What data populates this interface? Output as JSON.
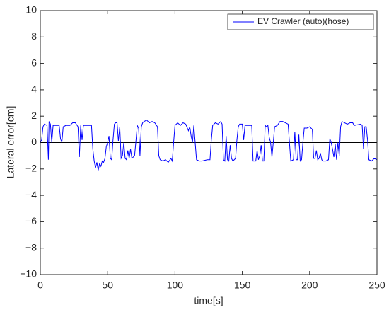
{
  "chart_data": {
    "type": "line",
    "xlabel": "time[s]",
    "ylabel": "Lateral error[cm]",
    "xlim": [
      0,
      250
    ],
    "ylim": [
      -10,
      10
    ],
    "xticks": [
      0,
      50,
      100,
      150,
      200,
      250
    ],
    "yticks": [
      {
        "value": -10,
        "label": "−10"
      },
      {
        "value": -8,
        "label": "−8"
      },
      {
        "value": -6,
        "label": "−6"
      },
      {
        "value": -4,
        "label": "−4"
      },
      {
        "value": -2,
        "label": "−2"
      },
      0,
      2,
      4,
      6,
      8,
      10
    ],
    "hlines": [
      0
    ],
    "legend": "top-right",
    "x": [
      0,
      1,
      2,
      3,
      5,
      6,
      6.5,
      7.5,
      8.5,
      9.5,
      12,
      14,
      15,
      16,
      17,
      19,
      22,
      24,
      26,
      28,
      29,
      30,
      31,
      32,
      35,
      38,
      39,
      40,
      41,
      42,
      43,
      44,
      45,
      46,
      47,
      48,
      49,
      50,
      51,
      52,
      53,
      54,
      55,
      56,
      57,
      58,
      59,
      60,
      61,
      62,
      63,
      64,
      65,
      66,
      67,
      68,
      69,
      70,
      71,
      72,
      73,
      74,
      75,
      76,
      77,
      79,
      81,
      83,
      85,
      87,
      88,
      89,
      91,
      93,
      95,
      97,
      98,
      99,
      100,
      102,
      104,
      106,
      108,
      110,
      111,
      112,
      113,
      114,
      116,
      118,
      120,
      124,
      126,
      127,
      128,
      130,
      132,
      134,
      135,
      136,
      137,
      138,
      139,
      140,
      141,
      142,
      143,
      144,
      145,
      146,
      147,
      148,
      150,
      151,
      152,
      154,
      157,
      158,
      160,
      161,
      162,
      163,
      164,
      165,
      166,
      167,
      168,
      169,
      170,
      171,
      172,
      173,
      174,
      176,
      178,
      180,
      182,
      184,
      186,
      188,
      189,
      190,
      191,
      192,
      193,
      194,
      195,
      196,
      198,
      200,
      202,
      203,
      204,
      205,
      206,
      207,
      208,
      209,
      210,
      212,
      214,
      215,
      216,
      217,
      218,
      219,
      220,
      221,
      222,
      223,
      224,
      226,
      228,
      230,
      232,
      233,
      238,
      239,
      240,
      241,
      242,
      243,
      244,
      246,
      248,
      250
    ],
    "series": [
      {
        "name": "EV Crawler (auto)(hose)",
        "color": "#0000ff",
        "values": [
          0,
          0.2,
          1.2,
          1.4,
          1.3,
          -1.3,
          1.6,
          1.4,
          0,
          1.3,
          1.3,
          1.3,
          0.3,
          0,
          1.2,
          1.3,
          1.3,
          1.5,
          1.5,
          1.2,
          -1.1,
          1.3,
          0.2,
          1.3,
          1.3,
          1.3,
          -0.5,
          -1.4,
          -1.9,
          -1.5,
          -2.1,
          -1.6,
          -1.8,
          -1.4,
          -1.5,
          -1.2,
          -0.3,
          0,
          0.5,
          -1.2,
          -1.3,
          0.2,
          1.4,
          1.5,
          1.5,
          0.1,
          1.2,
          -1.2,
          -1.0,
          0,
          -1.2,
          -1.3,
          -0.6,
          -1.2,
          -0.5,
          -1.2,
          -1.1,
          -1.0,
          0.1,
          1.3,
          1.1,
          -1.0,
          1.2,
          1.5,
          1.6,
          1.7,
          1.5,
          1.6,
          1.5,
          1.2,
          -1.0,
          -1.3,
          -1.4,
          -1.3,
          -1.5,
          -1.2,
          -1.4,
          0,
          1.3,
          1.5,
          1.3,
          1.5,
          1.4,
          0.9,
          1.2,
          0.5,
          0,
          1.3,
          -1.3,
          -1.4,
          -1.4,
          -1.3,
          -1.3,
          0.2,
          1.3,
          1.5,
          1.4,
          1.6,
          1.4,
          -1.3,
          -1.4,
          0.5,
          -1.3,
          -1.4,
          -0.2,
          -1.2,
          -1.4,
          -1.3,
          -1.2,
          0.2,
          1.2,
          1.4,
          1.4,
          0.2,
          1.3,
          1.3,
          1.3,
          -1.4,
          -1.4,
          -0.6,
          -1.3,
          -1.0,
          -0.2,
          -1.4,
          -1.4,
          1.3,
          1.2,
          1.3,
          0.4,
          0,
          -1.1,
          0,
          1.2,
          1.3,
          1.6,
          1.6,
          1.5,
          1.4,
          -1.4,
          -1.3,
          0.8,
          -1.3,
          -1.3,
          0.6,
          -1.4,
          -1.3,
          0,
          1.1,
          1.1,
          1.2,
          1.0,
          -1.2,
          -1.2,
          -0.6,
          -1.3,
          -1.2,
          -0.8,
          -1.3,
          -1.4,
          -1.4,
          -1.3,
          0.3,
          0,
          -0.5,
          -1.1,
          -0.1,
          -1.3,
          0,
          -1.0,
          1.2,
          1.6,
          1.5,
          1.4,
          1.5,
          1.5,
          1.3,
          1.4,
          1.3,
          -0.5,
          1.2,
          1.2,
          0.2,
          -1.3,
          -1.4,
          -1.2,
          -1.3
        ]
      }
    ]
  }
}
